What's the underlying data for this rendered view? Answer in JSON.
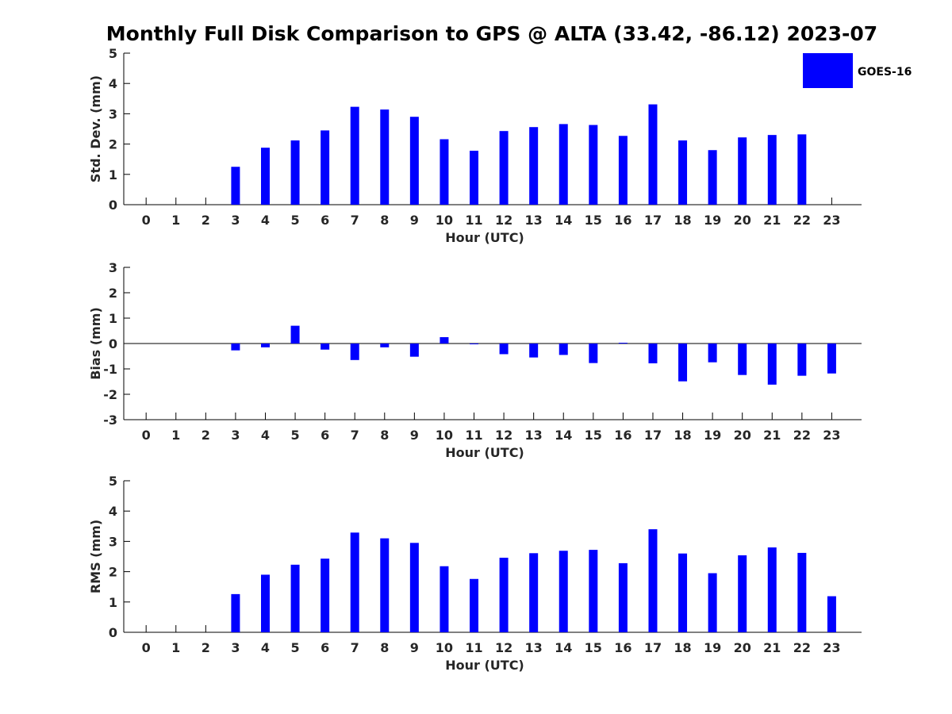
{
  "title": "Monthly Full Disk Comparison to GPS @ ALTA (33.42, -86.12) 2023-07",
  "legend": {
    "label": "GOES-16",
    "color": "#0000ff"
  },
  "chart_data": [
    {
      "type": "bar",
      "title": "Monthly Full Disk Comparison to GPS @ ALTA (33.42, -86.12) 2023-07",
      "xlabel": "Hour (UTC)",
      "ylabel": "Std. Dev. (mm)",
      "categories": [
        "0",
        "1",
        "2",
        "3",
        "4",
        "5",
        "6",
        "7",
        "8",
        "9",
        "10",
        "11",
        "12",
        "13",
        "14",
        "15",
        "16",
        "17",
        "18",
        "19",
        "20",
        "21",
        "22",
        "23"
      ],
      "ylim": [
        0,
        5
      ],
      "yticks": [
        "0",
        "1",
        "2",
        "3",
        "4",
        "5"
      ],
      "series": [
        {
          "name": "GOES-16",
          "color": "#0000ff",
          "values": [
            null,
            null,
            null,
            1.25,
            1.88,
            2.12,
            2.45,
            3.23,
            3.14,
            2.9,
            2.16,
            1.78,
            2.43,
            2.56,
            2.66,
            2.63,
            2.27,
            3.31,
            2.12,
            1.8,
            2.22,
            2.3,
            2.32,
            null
          ]
        }
      ],
      "legend": "top-right"
    },
    {
      "type": "bar",
      "xlabel": "Hour (UTC)",
      "ylabel": "Bias (mm)",
      "categories": [
        "0",
        "1",
        "2",
        "3",
        "4",
        "5",
        "6",
        "7",
        "8",
        "9",
        "10",
        "11",
        "12",
        "13",
        "14",
        "15",
        "16",
        "17",
        "18",
        "19",
        "20",
        "21",
        "22",
        "23"
      ],
      "ylim": [
        -3,
        3
      ],
      "yticks": [
        "-3",
        "-2",
        "-1",
        "0",
        "1",
        "2",
        "3"
      ],
      "series": [
        {
          "name": "GOES-16",
          "color": "#0000ff",
          "values": [
            null,
            null,
            null,
            -0.27,
            -0.15,
            0.7,
            -0.24,
            -0.65,
            -0.15,
            -0.52,
            0.25,
            -0.03,
            -0.42,
            -0.55,
            -0.45,
            -0.77,
            0.03,
            -0.78,
            -1.49,
            -0.74,
            -1.24,
            -1.62,
            -1.27,
            -1.18
          ]
        }
      ]
    },
    {
      "type": "bar",
      "xlabel": "Hour (UTC)",
      "ylabel": "RMS (mm)",
      "categories": [
        "0",
        "1",
        "2",
        "3",
        "4",
        "5",
        "6",
        "7",
        "8",
        "9",
        "10",
        "11",
        "12",
        "13",
        "14",
        "15",
        "16",
        "17",
        "18",
        "19",
        "20",
        "21",
        "22",
        "23"
      ],
      "ylim": [
        0,
        5
      ],
      "yticks": [
        "0",
        "1",
        "2",
        "3",
        "4",
        "5"
      ],
      "series": [
        {
          "name": "GOES-16",
          "color": "#0000ff",
          "values": [
            null,
            null,
            null,
            1.26,
            1.9,
            2.23,
            2.43,
            3.29,
            3.1,
            2.95,
            2.18,
            1.76,
            2.46,
            2.61,
            2.69,
            2.72,
            2.28,
            3.4,
            2.6,
            1.95,
            2.54,
            2.8,
            2.62,
            1.19
          ]
        }
      ]
    }
  ]
}
